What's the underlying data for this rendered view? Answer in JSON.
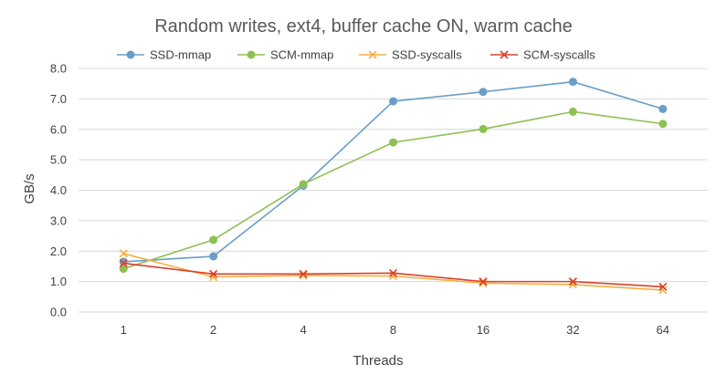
{
  "chart_data": {
    "type": "line",
    "title": "Random writes, ext4, buffer cache ON, warm cache",
    "xlabel": "Threads",
    "ylabel": "GB/s",
    "categories": [
      "1",
      "2",
      "4",
      "8",
      "16",
      "32",
      "64"
    ],
    "ylim": [
      0,
      8
    ],
    "yticks": [
      "0.0",
      "1.0",
      "2.0",
      "3.0",
      "4.0",
      "5.0",
      "6.0",
      "7.0",
      "8.0"
    ],
    "grid": true,
    "legend_position": "top",
    "series": [
      {
        "name": "SSD-mmap",
        "color": "#6a9ec8",
        "marker": "circle",
        "values": [
          1.65,
          1.83,
          4.15,
          6.92,
          7.23,
          7.56,
          6.67
        ]
      },
      {
        "name": "SCM-mmap",
        "color": "#8cc152",
        "marker": "circle",
        "values": [
          1.42,
          2.37,
          4.2,
          5.57,
          6.01,
          6.58,
          6.18
        ]
      },
      {
        "name": "SSD-syscalls",
        "color": "#f5b041",
        "marker": "x",
        "values": [
          1.92,
          1.15,
          1.2,
          1.18,
          0.95,
          0.9,
          0.72
        ]
      },
      {
        "name": "SCM-syscalls",
        "color": "#d9412b",
        "marker": "x",
        "values": [
          1.6,
          1.25,
          1.25,
          1.28,
          1.0,
          1.0,
          0.83
        ]
      }
    ]
  }
}
